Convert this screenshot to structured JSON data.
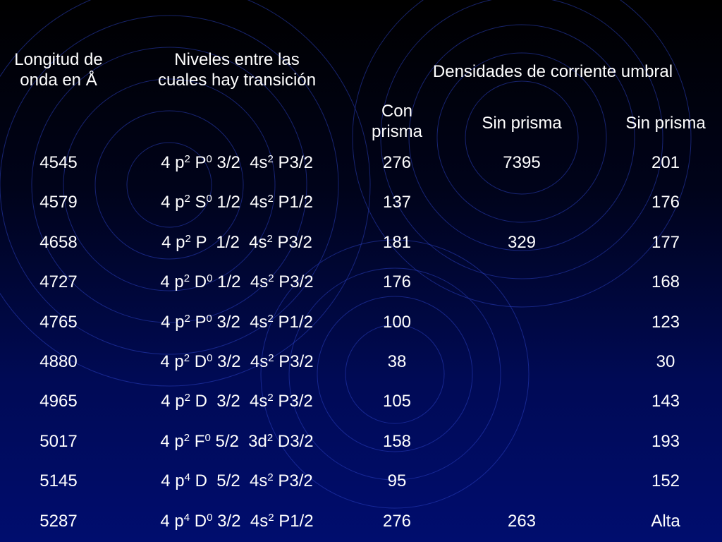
{
  "headers": {
    "col1": [
      "Longitud de",
      "onda en Å"
    ],
    "col2": [
      "Niveles entre las",
      "cuales hay transición"
    ],
    "group": "Densidades de corriente umbral",
    "col3": [
      "Con",
      "prisma"
    ],
    "col4": "Sin prisma",
    "col5": "Sin prisma"
  },
  "rows": [
    {
      "wavelength": "4545",
      "t": [
        "4 p",
        "2",
        " P",
        "0",
        " 3/2  4s",
        "2",
        " P3/2"
      ],
      "con": "276",
      "sin1": "7395",
      "sin2": "201"
    },
    {
      "wavelength": "4579",
      "t": [
        "4 p",
        "2",
        " S",
        "0",
        " 1/2  4s",
        "2",
        " P1/2"
      ],
      "con": "137",
      "sin1": "",
      "sin2": "176"
    },
    {
      "wavelength": "4658",
      "t": [
        "4 p",
        "2",
        " P  1/2  4s",
        "2",
        " P3/2"
      ],
      "con": "181",
      "sin1": "329",
      "sin2": "177"
    },
    {
      "wavelength": "4727",
      "t": [
        "4 p",
        "2",
        " D",
        "0",
        " 1/2  4s",
        "2",
        " P3/2"
      ],
      "con": "176",
      "sin1": "",
      "sin2": "168"
    },
    {
      "wavelength": "4765",
      "t": [
        "4 p",
        "2",
        " P",
        "0",
        " 3/2  4s",
        "2",
        " P1/2"
      ],
      "con": "100",
      "sin1": "",
      "sin2": "123"
    },
    {
      "wavelength": "4880",
      "t": [
        "4 p",
        "2",
        " D",
        "0",
        " 3/2  4s",
        "2",
        " P3/2"
      ],
      "con": "38",
      "sin1": "",
      "sin2": "30"
    },
    {
      "wavelength": "4965",
      "t": [
        "4 p",
        "2",
        " D  3/2  4s",
        "2",
        " P3/2"
      ],
      "con": "105",
      "sin1": "",
      "sin2": "143"
    },
    {
      "wavelength": "5017",
      "t": [
        "4 p",
        "2",
        " F",
        "0",
        " 5/2  3d",
        "2",
        " D3/2"
      ],
      "con": "158",
      "sin1": "",
      "sin2": "193"
    },
    {
      "wavelength": "5145",
      "t": [
        "4 p",
        "4",
        " D  5/2  4s",
        "2",
        " P3/2"
      ],
      "con": "95",
      "sin1": "",
      "sin2": "152"
    },
    {
      "wavelength": "5287",
      "t": [
        "4 p",
        "4",
        " D",
        "0",
        " 3/2  4s",
        "2",
        " P1/2"
      ],
      "con": "276",
      "sin1": "263",
      "sin2": "Alta"
    }
  ]
}
